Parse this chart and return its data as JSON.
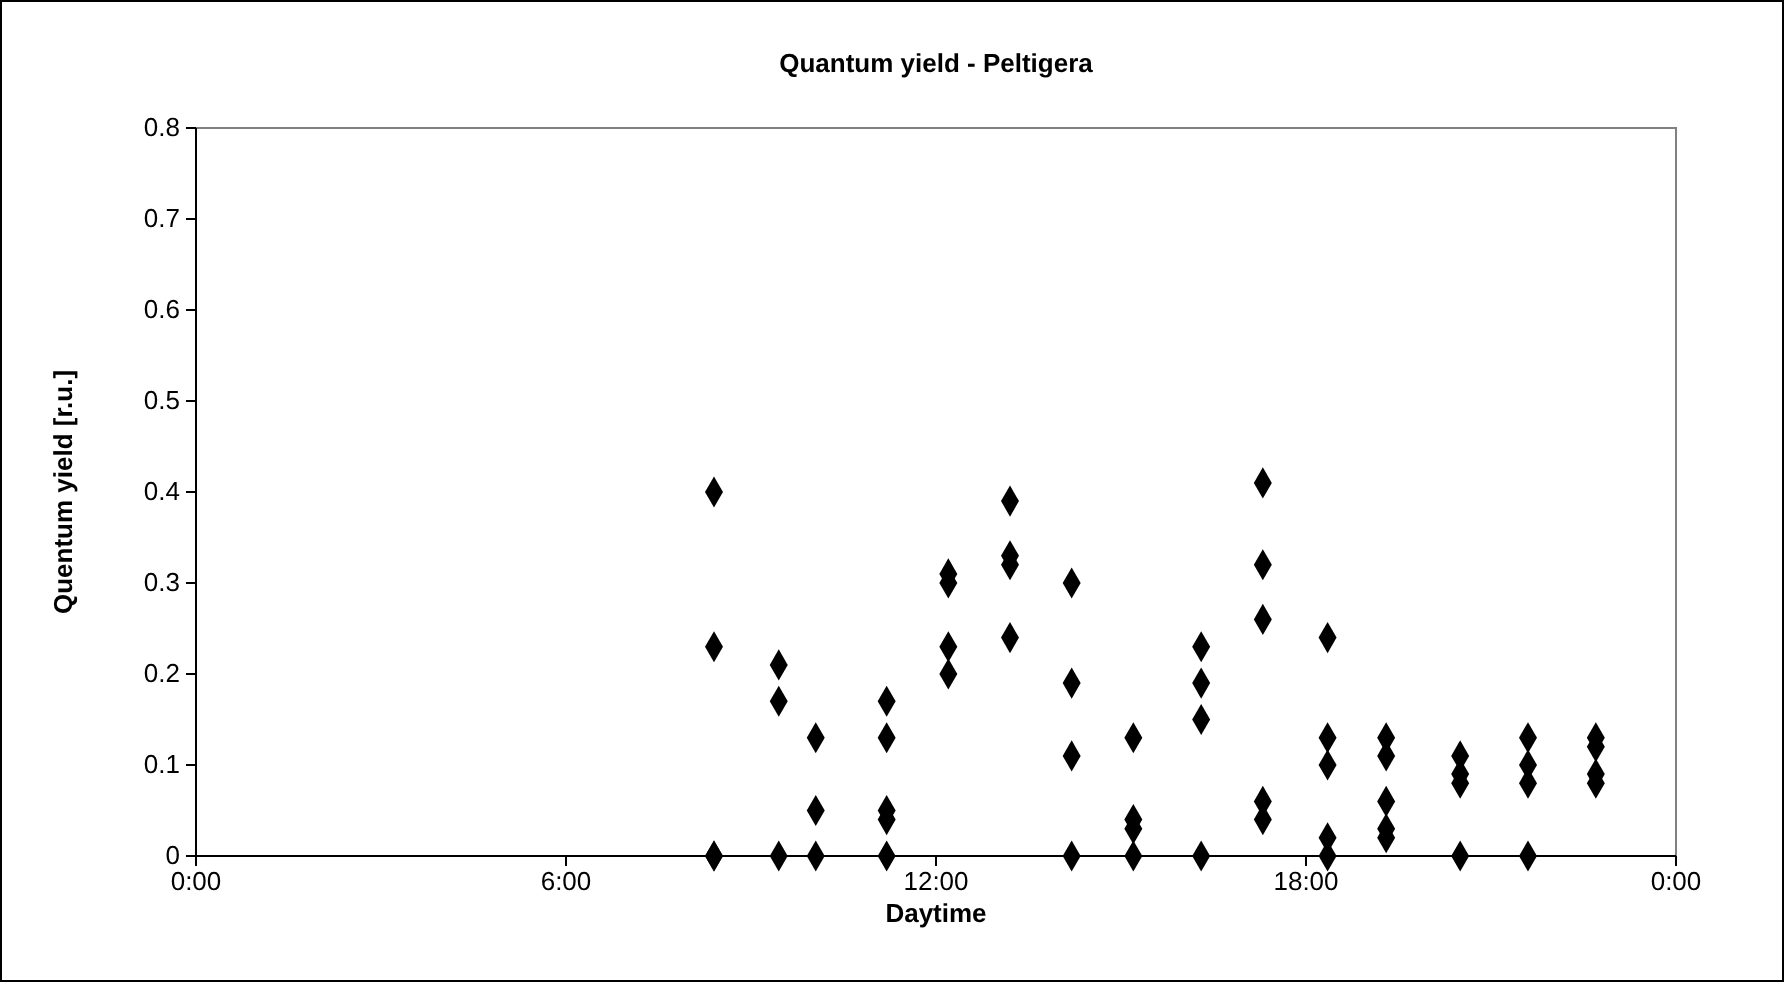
{
  "chart_data": {
    "type": "scatter",
    "title": "Quantum yield - Peltigera",
    "xlabel": "Daytime",
    "ylabel": "Quentum yield [r.u.]",
    "x": [
      8.4,
      8.4,
      8.4,
      8.4,
      9.45,
      9.45,
      9.45,
      10.05,
      10.05,
      10.05,
      11.2,
      11.2,
      11.2,
      11.2,
      11.2,
      12.2,
      12.2,
      12.2,
      12.2,
      13.2,
      13.2,
      13.2,
      13.2,
      14.2,
      14.2,
      14.2,
      14.2,
      15.2,
      15.2,
      15.2,
      15.2,
      16.3,
      16.3,
      16.3,
      16.3,
      17.3,
      17.3,
      17.3,
      17.3,
      17.3,
      18.35,
      18.35,
      18.35,
      18.35,
      18.35,
      19.3,
      19.3,
      19.3,
      19.3,
      19.3,
      20.5,
      20.5,
      20.5,
      20.5,
      21.6,
      21.6,
      21.6,
      21.6,
      22.7,
      22.7,
      22.7,
      22.7
    ],
    "series": [
      {
        "color": "#000000",
        "values": [
          0.4,
          0.23,
          0,
          0,
          0.21,
          0.17,
          0,
          0.13,
          0.05,
          0,
          0.17,
          0.13,
          0.05,
          0.04,
          0,
          0.31,
          0.3,
          0.23,
          0.2,
          0.39,
          0.33,
          0.32,
          0.24,
          0.3,
          0.19,
          0.11,
          0,
          0.13,
          0.04,
          0.03,
          0,
          0.23,
          0.19,
          0.15,
          0,
          0.41,
          0.32,
          0.26,
          0.06,
          0.04,
          0.24,
          0.13,
          0.1,
          0.02,
          0,
          0.13,
          0.11,
          0.06,
          0.03,
          0.02,
          0.11,
          0.09,
          0.08,
          0,
          0.13,
          0.1,
          0.08,
          0,
          0.13,
          0.12,
          0.09,
          0.08
        ]
      }
    ],
    "xlim": [
      0,
      24
    ],
    "xticks": [
      {
        "value": 0,
        "label": "0:00"
      },
      {
        "value": 6,
        "label": "6:00"
      },
      {
        "value": 12,
        "label": "12:00"
      },
      {
        "value": 18,
        "label": "18:00"
      },
      {
        "value": 24,
        "label": "0:00"
      }
    ],
    "ylim": [
      0,
      0.8
    ],
    "yticks": [
      {
        "value": 0,
        "label": "0"
      },
      {
        "value": 0.1,
        "label": "0.1"
      },
      {
        "value": 0.2,
        "label": "0.2"
      },
      {
        "value": 0.3,
        "label": "0.3"
      },
      {
        "value": 0.4,
        "label": "0.4"
      },
      {
        "value": 0.5,
        "label": "0.5"
      },
      {
        "value": 0.6,
        "label": "0.6"
      },
      {
        "value": 0.7,
        "label": "0.7"
      },
      {
        "value": 0.8,
        "label": "0.8"
      }
    ],
    "grid": false,
    "legend": false,
    "marker": "diamond"
  }
}
